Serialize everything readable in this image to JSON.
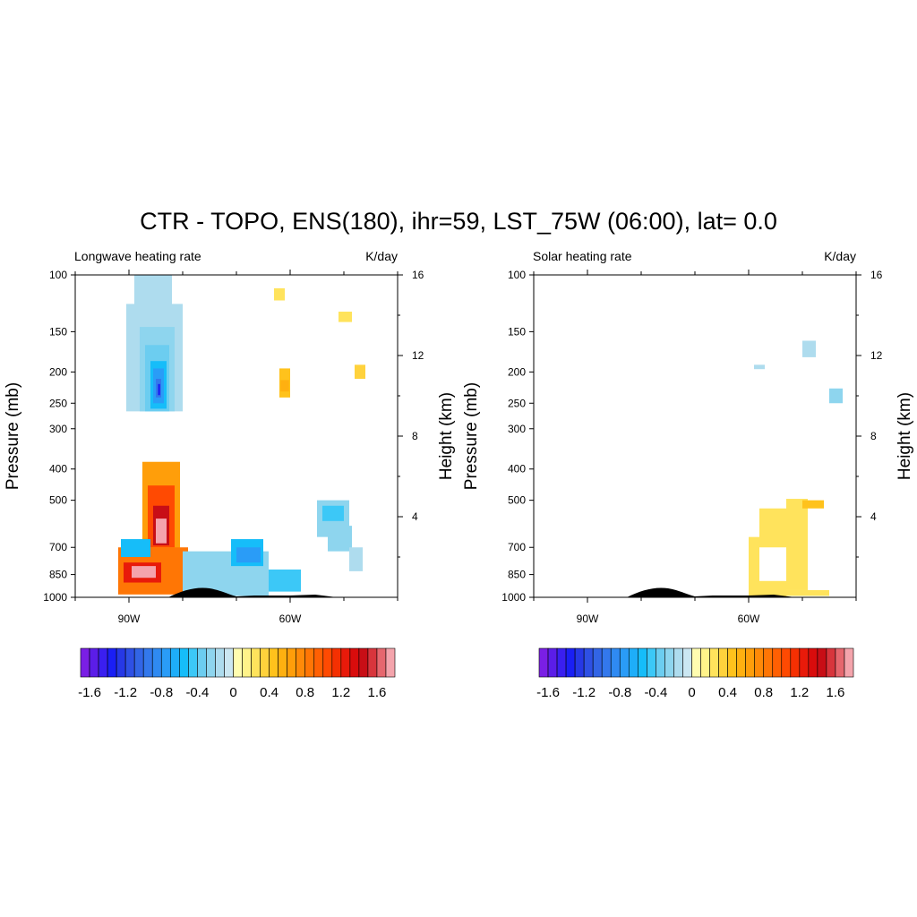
{
  "main_title": "CTR - TOPO, ENS(180), ihr=59, LST_75W (06:00), lat=  0.0",
  "chart_data": [
    {
      "type": "heatmap",
      "title": "Longwave heating rate",
      "units": "K/day",
      "ylabel": "Pressure (mb)",
      "ylabel_right": "Height (km)",
      "x_ticks": [
        "90W",
        "60W"
      ],
      "y_ticks": [
        100,
        150,
        200,
        250,
        300,
        400,
        500,
        700,
        850,
        1000
      ],
      "y_right_ticks": [
        16,
        12,
        8,
        4
      ],
      "xlim": [
        -100,
        -40
      ],
      "ylim": [
        1000,
        100
      ],
      "y_right_lim": [
        0,
        16
      ],
      "y_scale": "log",
      "patches": [
        {
          "lon": [
            -90.5,
            -80.0
          ],
          "p": [
            123,
            265
          ],
          "value": -0.2
        },
        {
          "lon": [
            -89.0,
            -82.0
          ],
          "p": [
            100,
            190
          ],
          "value": -0.2
        },
        {
          "lon": [
            -88.0,
            -81.5
          ],
          "p": [
            145,
            265
          ],
          "value": -0.3
        },
        {
          "lon": [
            -87.0,
            -82.5
          ],
          "p": [
            165,
            265
          ],
          "value": -0.4
        },
        {
          "lon": [
            -86.0,
            -83.0
          ],
          "p": [
            185,
            260
          ],
          "value": -0.6
        },
        {
          "lon": [
            -85.5,
            -83.5
          ],
          "p": [
            195,
            250
          ],
          "value": -0.8
        },
        {
          "lon": [
            -85.0,
            -84.0
          ],
          "p": [
            210,
            240
          ],
          "value": -1.0
        },
        {
          "lon": [
            -84.6,
            -84.2
          ],
          "p": [
            218,
            236
          ],
          "value": -1.4
        },
        {
          "lon": [
            -62.0,
            -60.0
          ],
          "p": [
            195,
            240
          ],
          "value": 0.4
        },
        {
          "lon": [
            -61.8,
            -60.2
          ],
          "p": [
            212,
            230
          ],
          "value": 0.5
        },
        {
          "lon": [
            -63.0,
            -61.0
          ],
          "p": [
            110,
            120
          ],
          "value": 0.2
        },
        {
          "lon": [
            -51.0,
            -48.5
          ],
          "p": [
            130,
            140
          ],
          "value": 0.2
        },
        {
          "lon": [
            -48.0,
            -46.0
          ],
          "p": [
            190,
            210
          ],
          "value": 0.3
        },
        {
          "lon": [
            -87.5,
            -80.5
          ],
          "p": [
            380,
            720
          ],
          "value": 0.6
        },
        {
          "lon": [
            -86.5,
            -81.5
          ],
          "p": [
            450,
            700
          ],
          "value": 1.0
        },
        {
          "lon": [
            -85.5,
            -82.5
          ],
          "p": [
            520,
            690
          ],
          "value": 1.4
        },
        {
          "lon": [
            -85.0,
            -83.0
          ],
          "p": [
            570,
            680
          ],
          "value": 1.7
        },
        {
          "lon": [
            -92.0,
            -79.0
          ],
          "p": [
            700,
            980
          ],
          "value": 0.8
        },
        {
          "lon": [
            -91.0,
            -84.0
          ],
          "p": [
            780,
            900
          ],
          "value": 1.2
        },
        {
          "lon": [
            -89.5,
            -85.0
          ],
          "p": [
            800,
            870
          ],
          "value": 1.7
        },
        {
          "lon": [
            -91.5,
            -86.0
          ],
          "p": [
            660,
            750
          ],
          "value": -0.6
        },
        {
          "lon": [
            -80.0,
            -64.0
          ],
          "p": [
            720,
            990
          ],
          "value": -0.3
        },
        {
          "lon": [
            -71.0,
            -65.0
          ],
          "p": [
            660,
            800
          ],
          "value": -0.6
        },
        {
          "lon": [
            -70.0,
            -65.5
          ],
          "p": [
            700,
            780
          ],
          "value": -0.8
        },
        {
          "lon": [
            -64.0,
            -58.0
          ],
          "p": [
            820,
            960
          ],
          "value": -0.5
        },
        {
          "lon": [
            -55.0,
            -49.0
          ],
          "p": [
            500,
            650
          ],
          "value": -0.3
        },
        {
          "lon": [
            -54.0,
            -50.0
          ],
          "p": [
            520,
            580
          ],
          "value": -0.5
        },
        {
          "lon": [
            -53.0,
            -48.5
          ],
          "p": [
            600,
            720
          ],
          "value": -0.3
        },
        {
          "lon": [
            -49.0,
            -46.5
          ],
          "p": [
            700,
            830
          ],
          "value": -0.2
        }
      ]
    },
    {
      "type": "heatmap",
      "title": "Solar heating rate",
      "units": "K/day",
      "ylabel": "Pressure (mb)",
      "ylabel_right": "Height (km)",
      "x_ticks": [
        "90W",
        "60W"
      ],
      "y_ticks": [
        100,
        150,
        200,
        250,
        300,
        400,
        500,
        700,
        850,
        1000
      ],
      "y_right_ticks": [
        16,
        12,
        8,
        4
      ],
      "xlim": [
        -100,
        -40
      ],
      "ylim": [
        1000,
        100
      ],
      "y_right_lim": [
        0,
        16
      ],
      "y_scale": "log",
      "patches": [
        {
          "lon": [
            -58.0,
            -53.0
          ],
          "p": [
            530,
            700
          ],
          "value": 0.2
        },
        {
          "lon": [
            -53.0,
            -49.0
          ],
          "p": [
            495,
            950
          ],
          "value": 0.2
        },
        {
          "lon": [
            -50.0,
            -46.0
          ],
          "p": [
            500,
            530
          ],
          "value": 0.4
        },
        {
          "lon": [
            -60.0,
            -58.0
          ],
          "p": [
            650,
            1000
          ],
          "value": 0.2
        },
        {
          "lon": [
            -58.0,
            -53.0
          ],
          "p": [
            890,
            1000
          ],
          "value": 0.2
        },
        {
          "lon": [
            -53.0,
            -45.0
          ],
          "p": [
            950,
            990
          ],
          "value": 0.2
        },
        {
          "lon": [
            -50.0,
            -47.5
          ],
          "p": [
            160,
            180
          ],
          "value": -0.2
        },
        {
          "lon": [
            -59.0,
            -57.0
          ],
          "p": [
            190,
            196
          ],
          "value": -0.2
        },
        {
          "lon": [
            -45.0,
            -42.5
          ],
          "p": [
            225,
            250
          ],
          "value": -0.3
        }
      ]
    }
  ],
  "colorbar": {
    "levels": [
      -1.7,
      -1.6,
      -1.5,
      -1.4,
      -1.3,
      -1.2,
      -1.1,
      -1.0,
      -0.9,
      -0.8,
      -0.7,
      -0.6,
      -0.5,
      -0.4,
      -0.3,
      -0.2,
      -0.1,
      0.0,
      0.1,
      0.2,
      0.3,
      0.4,
      0.5,
      0.6,
      0.7,
      0.8,
      0.9,
      1.0,
      1.1,
      1.2,
      1.3,
      1.4,
      1.5,
      1.6,
      1.7
    ],
    "tick_labels": [
      "-1.6",
      "-1.2",
      "-0.8",
      "-0.4",
      "0",
      "0.4",
      "0.8",
      "1.2",
      "1.6"
    ],
    "colors": [
      "#7a1fe5",
      "#5b1de8",
      "#3a1ff0",
      "#1a1ff5",
      "#2638e6",
      "#2e50e5",
      "#3265e6",
      "#3378ec",
      "#2f8af2",
      "#2a9cf7",
      "#1eaef9",
      "#16bdf9",
      "#3cc8f7",
      "#6ccdf0",
      "#8ed5ee",
      "#aedcee",
      "#cbe7f2",
      "#fffdb0",
      "#fff38a",
      "#ffe35c",
      "#ffd23c",
      "#ffc21c",
      "#ffb010",
      "#ff9e0a",
      "#ff8a08",
      "#ff7605",
      "#ff6003",
      "#ff4a02",
      "#f53002",
      "#e81a0a",
      "#d90c0c",
      "#c80e16",
      "#d8353c",
      "#e6676e",
      "#f4a4ac"
    ]
  }
}
